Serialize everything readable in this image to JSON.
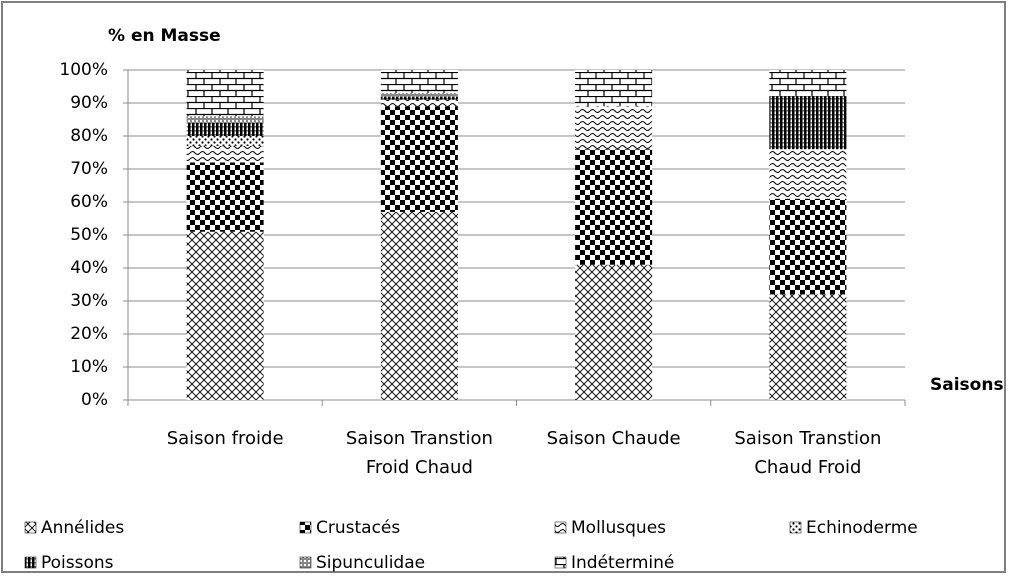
{
  "chart_data": {
    "type": "stacked_bar",
    "y_label": "% en Masse",
    "x_label": "Saisons",
    "categories": [
      "Saison froide",
      "Saison Transtion Froid Chaud",
      "Saison Chaude",
      "Saison Transtion Chaud Froid"
    ],
    "series": [
      {
        "name": "Annélides",
        "color": "#000000",
        "pattern": "crosshatch",
        "values": [
          51,
          57,
          41,
          32
        ]
      },
      {
        "name": "Crustacés",
        "color": "#000000",
        "pattern": "checker",
        "values": [
          21,
          32,
          35,
          29
        ]
      },
      {
        "name": "Mollusques",
        "color": "#000000",
        "pattern": "wave",
        "values": [
          5,
          2,
          13,
          15
        ]
      },
      {
        "name": "Echinoderme",
        "color": "#000000",
        "pattern": "dots",
        "values": [
          3,
          0,
          0,
          0
        ]
      },
      {
        "name": "Poissons",
        "color": "#000000",
        "pattern": "vlines",
        "values": [
          4,
          1,
          0,
          16
        ]
      },
      {
        "name": "Sipunculidae",
        "color": "#000000",
        "pattern": "finegrid",
        "values": [
          2,
          1,
          0,
          0
        ]
      },
      {
        "name": "Indéterminé",
        "color": "#000000",
        "pattern": "brick",
        "values": [
          14,
          7,
          11,
          8
        ]
      }
    ],
    "ylim": [
      0,
      100
    ],
    "yticks": [
      {
        "value": 0,
        "label": "0%"
      },
      {
        "value": 10,
        "label": "10%"
      },
      {
        "value": 20,
        "label": "20%"
      },
      {
        "value": 30,
        "label": "30%"
      },
      {
        "value": 40,
        "label": "40%"
      },
      {
        "value": 50,
        "label": "50%"
      },
      {
        "value": 60,
        "label": "60%"
      },
      {
        "value": 70,
        "label": "70%"
      },
      {
        "value": 80,
        "label": "80%"
      },
      {
        "value": 90,
        "label": "90%"
      },
      {
        "value": 100,
        "label": "100%"
      }
    ],
    "grid": true,
    "legend": "bottom"
  }
}
